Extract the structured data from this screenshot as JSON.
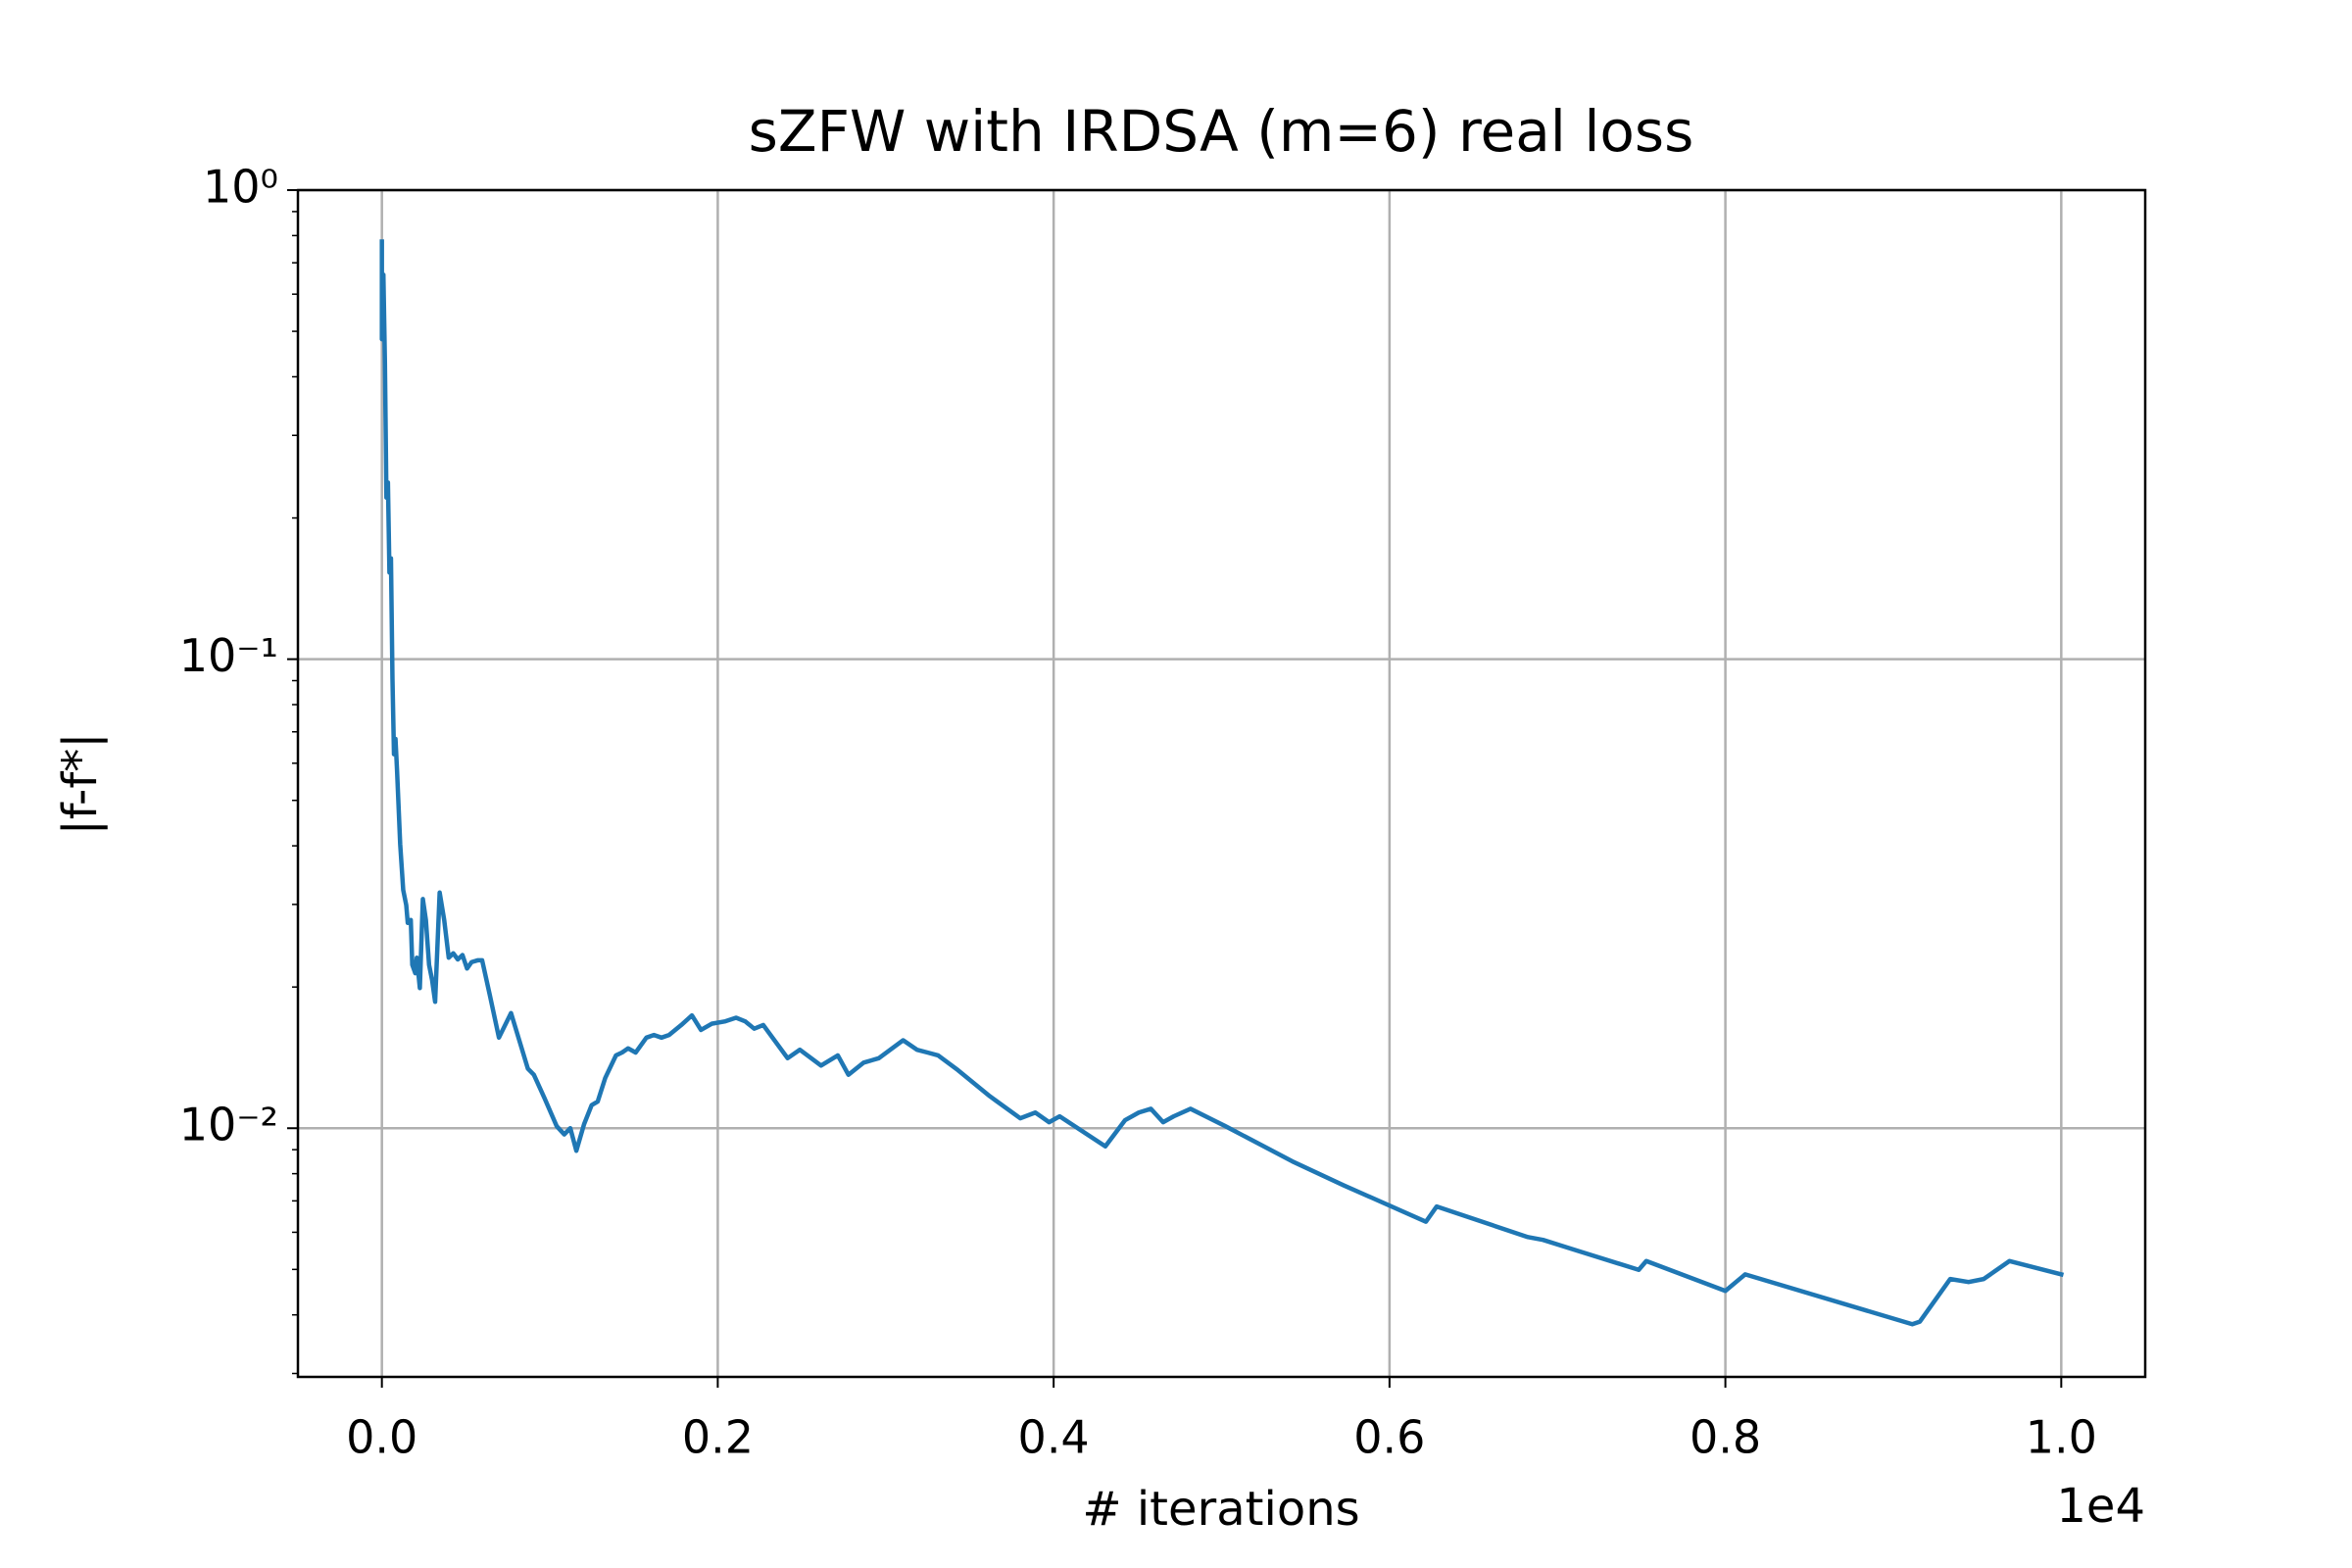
{
  "chart_data": {
    "type": "line",
    "title": "sZFW with IRDSA (m=6) real loss",
    "xlabel": "# iterations",
    "ylabel": "|f-f*|",
    "x_offset_label": "1e4",
    "yscale": "log",
    "grid": true,
    "xlim": [
      -500,
      10500
    ],
    "ylim": [
      0.00295,
      1
    ],
    "xticks": [
      {
        "value": 0,
        "label": "0.0"
      },
      {
        "value": 2000,
        "label": "0.2"
      },
      {
        "value": 4000,
        "label": "0.4"
      },
      {
        "value": 6000,
        "label": "0.6"
      },
      {
        "value": 8000,
        "label": "0.8"
      },
      {
        "value": 10000,
        "label": "1.0"
      }
    ],
    "yticks": [
      {
        "value": 0.01,
        "label": "10⁻²"
      },
      {
        "value": 0.1,
        "label": "10⁻¹"
      },
      {
        "value": 1,
        "label": "10⁰"
      }
    ],
    "yminorticks": [
      0.003,
      0.004,
      0.005,
      0.006,
      0.007,
      0.008,
      0.009,
      0.02,
      0.03,
      0.04,
      0.05,
      0.06,
      0.07,
      0.08,
      0.09,
      0.2,
      0.3,
      0.4,
      0.5,
      0.6,
      0.7,
      0.8,
      0.9
    ],
    "series": [
      {
        "color": "#1f77b4",
        "x": [
          0,
          0,
          9,
          18,
          27,
          36,
          45,
          54,
          63,
          72,
          81,
          90,
          109,
          127,
          145,
          154,
          172,
          181,
          199,
          208,
          226,
          244,
          262,
          281,
          299,
          317,
          344,
          371,
          398,
          425,
          452,
          480,
          507,
          534,
          570,
          597,
          643,
          697,
          769,
          869,
          905,
          968,
          1041,
          1086,
          1122,
          1158,
          1204,
          1249,
          1285,
          1330,
          1394,
          1430,
          1466,
          1511,
          1575,
          1620,
          1665,
          1710,
          1783,
          1846,
          1900,
          1964,
          2045,
          2109,
          2163,
          2217,
          2271,
          2326,
          2416,
          2489,
          2615,
          2715,
          2778,
          2869,
          2959,
          3104,
          3186,
          3249,
          3312,
          3430,
          3620,
          3801,
          3891,
          3973,
          4036,
          4308,
          4425,
          4507,
          4579,
          4652,
          4715,
          4815,
          5023,
          5421,
          5729,
          6217,
          6281,
          6416,
          6824,
          6914,
          7140,
          7484,
          7529,
          8000,
          8118,
          9113,
          9158,
          9339,
          9448,
          9538,
          9692,
          10000
        ],
        "values": [
          0.777,
          0.481,
          0.66,
          0.43,
          0.221,
          0.238,
          0.153,
          0.164,
          0.0908,
          0.0627,
          0.0676,
          0.0582,
          0.0403,
          0.0322,
          0.0299,
          0.0274,
          0.0278,
          0.0223,
          0.0214,
          0.0231,
          0.0199,
          0.0308,
          0.0278,
          0.0223,
          0.0207,
          0.0186,
          0.0318,
          0.0278,
          0.0231,
          0.0236,
          0.0229,
          0.0234,
          0.0219,
          0.0226,
          0.0228,
          0.0228,
          0.0192,
          0.0156,
          0.0176,
          0.0134,
          0.013,
          0.0116,
          0.0101,
          0.0097,
          0.01,
          0.00895,
          0.0102,
          0.0112,
          0.0114,
          0.0128,
          0.0143,
          0.0145,
          0.0148,
          0.0145,
          0.0156,
          0.0158,
          0.0156,
          0.0158,
          0.0166,
          0.0174,
          0.0162,
          0.0167,
          0.0169,
          0.0172,
          0.0169,
          0.0163,
          0.0166,
          0.0156,
          0.0141,
          0.0147,
          0.0136,
          0.0143,
          0.013,
          0.0138,
          0.0141,
          0.0154,
          0.0147,
          0.0145,
          0.0143,
          0.0133,
          0.0117,
          0.0105,
          0.0108,
          0.0103,
          0.0106,
          0.00915,
          0.0104,
          0.0108,
          0.011,
          0.0103,
          0.0106,
          0.011,
          0.0101,
          0.0085,
          0.00755,
          0.00632,
          0.00681,
          0.00656,
          0.00586,
          0.00578,
          0.00545,
          0.00499,
          0.00521,
          0.0045,
          0.00488,
          0.00382,
          0.00387,
          0.00477,
          0.0047,
          0.00477,
          0.00521,
          0.00488
        ]
      }
    ]
  }
}
